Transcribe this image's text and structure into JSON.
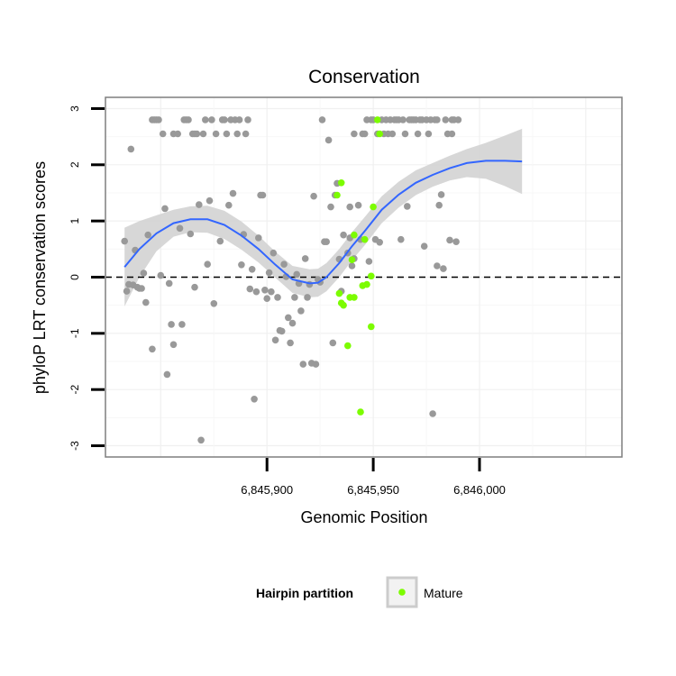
{
  "chart_data": {
    "type": "scatter",
    "title": "Conservation",
    "xlabel": "Genomic Position",
    "ylabel": "phyloP LRT conservation scores",
    "xlim": [
      6845824,
      6846067
    ],
    "ylim": [
      -3.2,
      3.2
    ],
    "x_ticks": [
      6845900,
      6845950,
      6846000
    ],
    "x_tick_labels": [
      "6,845,900",
      "6,845,950",
      "6,846,000"
    ],
    "y_ticks": [
      -3,
      -2,
      -1,
      0,
      1,
      2,
      3
    ],
    "y_tick_labels": [
      "-3",
      "-2",
      "-1",
      "0",
      "1",
      "2",
      "3"
    ],
    "grid": true,
    "reference_line": {
      "y": 0,
      "style": "dashed"
    },
    "legend": {
      "title": "Hairpin partition",
      "position": "bottom",
      "entries": [
        {
          "label": "Mature",
          "color": "#7cfc00"
        }
      ]
    },
    "colors": {
      "other": "#999999",
      "mature": "#7cfc00",
      "smooth_line": "#3366ff",
      "confidence_band": "#d3d3d3",
      "panel_border": "#7f7f7f"
    },
    "series": [
      {
        "points": [
          [
            6845833,
            0.64
          ],
          [
            6845834,
            -0.25
          ],
          [
            6845835,
            -0.13
          ],
          [
            6845836,
            2.28
          ],
          [
            6845837,
            -0.14
          ],
          [
            6845838,
            0.48
          ],
          [
            6845839,
            -0.18
          ],
          [
            6845840,
            -0.2
          ],
          [
            6845841,
            -0.2
          ],
          [
            6845842,
            0.07
          ],
          [
            6845843,
            -0.45
          ],
          [
            6845844,
            0.75
          ],
          [
            6845846,
            -1.28
          ],
          [
            6845846,
            2.8
          ],
          [
            6845847,
            2.8
          ],
          [
            6845848,
            2.8
          ],
          [
            6845849,
            2.8
          ],
          [
            6845850,
            0.03
          ],
          [
            6845851,
            2.55
          ],
          [
            6845852,
            1.22
          ],
          [
            6845853,
            -1.73
          ],
          [
            6845854,
            -0.11
          ],
          [
            6845855,
            -0.84
          ],
          [
            6845856,
            2.55
          ],
          [
            6845856,
            -1.2
          ],
          [
            6845858,
            2.55
          ],
          [
            6845859,
            0.87
          ],
          [
            6845860,
            -0.84
          ],
          [
            6845861,
            2.8
          ],
          [
            6845862,
            2.8
          ],
          [
            6845863,
            2.8
          ],
          [
            6845864,
            0.77
          ],
          [
            6845865,
            2.55
          ],
          [
            6845866,
            2.55
          ],
          [
            6845866,
            -0.18
          ],
          [
            6845867,
            2.55
          ],
          [
            6845868,
            1.29
          ],
          [
            6845869,
            -2.9
          ],
          [
            6845870,
            2.55
          ],
          [
            6845871,
            2.8
          ],
          [
            6845872,
            0.23
          ],
          [
            6845873,
            1.36
          ],
          [
            6845874,
            2.8
          ],
          [
            6845875,
            -0.47
          ],
          [
            6845876,
            2.55
          ],
          [
            6845878,
            0.64
          ],
          [
            6845879,
            2.8
          ],
          [
            6845880,
            2.8
          ],
          [
            6845881,
            2.55
          ],
          [
            6845882,
            1.28
          ],
          [
            6845883,
            2.8
          ],
          [
            6845884,
            1.49
          ],
          [
            6845885,
            2.8
          ],
          [
            6845886,
            2.55
          ],
          [
            6845887,
            2.8
          ],
          [
            6845888,
            0.22
          ],
          [
            6845889,
            0.76
          ],
          [
            6845890,
            2.55
          ],
          [
            6845891,
            2.8
          ],
          [
            6845892,
            -0.21
          ],
          [
            6845893,
            0.14
          ],
          [
            6845894,
            -2.17
          ],
          [
            6845895,
            -0.26
          ],
          [
            6845896,
            0.7
          ],
          [
            6845897,
            1.46
          ],
          [
            6845898,
            1.46
          ],
          [
            6845899,
            -0.23
          ],
          [
            6845900,
            -0.38
          ],
          [
            6845901,
            0.08
          ],
          [
            6845902,
            -0.26
          ],
          [
            6845903,
            0.43
          ],
          [
            6845904,
            -1.12
          ],
          [
            6845905,
            -0.36
          ],
          [
            6845906,
            -0.95
          ],
          [
            6845907,
            -0.96
          ],
          [
            6845908,
            0.23
          ],
          [
            6845909,
            0.01
          ],
          [
            6845910,
            -0.72
          ],
          [
            6845911,
            -1.17
          ],
          [
            6845912,
            -0.82
          ],
          [
            6845913,
            -0.36
          ],
          [
            6845914,
            0.05
          ],
          [
            6845915,
            -0.11
          ],
          [
            6845916,
            -0.6
          ],
          [
            6845917,
            -1.55
          ],
          [
            6845918,
            0.33
          ],
          [
            6845919,
            -0.36
          ],
          [
            6845920,
            -0.13
          ],
          [
            6845921,
            -1.53
          ],
          [
            6845922,
            1.44
          ],
          [
            6845923,
            -1.55
          ],
          [
            6845924,
            -0.04
          ],
          [
            6845925,
            -0.09
          ],
          [
            6845926,
            2.8
          ],
          [
            6845927,
            0.63
          ],
          [
            6845928,
            0.63
          ],
          [
            6845929,
            2.44
          ],
          [
            6845930,
            1.25
          ],
          [
            6845931,
            -1.17
          ],
          [
            6845932,
            1.46
          ],
          [
            6845933,
            1.67
          ],
          [
            6845934,
            0.32
          ],
          [
            6845935,
            -0.25
          ],
          [
            6845936,
            0.75
          ],
          [
            6845938,
            0.43
          ],
          [
            6845939,
            0.7
          ],
          [
            6845939,
            1.25
          ],
          [
            6845940,
            0.2
          ],
          [
            6845941,
            2.55
          ],
          [
            6845941,
            0.33
          ],
          [
            6845943,
            1.28
          ],
          [
            6845944,
            0.67
          ],
          [
            6845945,
            2.55
          ],
          [
            6845946,
            2.55
          ],
          [
            6845947,
            2.8
          ],
          [
            6845948,
            0.28
          ],
          [
            6845949,
            2.8
          ],
          [
            6845950,
            2.8
          ],
          [
            6845951,
            0.67
          ],
          [
            6845952,
            2.55
          ],
          [
            6845953,
            0.62
          ],
          [
            6845954,
            2.8
          ],
          [
            6845955,
            2.55
          ],
          [
            6845956,
            2.8
          ],
          [
            6845957,
            2.55
          ],
          [
            6845958,
            2.8
          ],
          [
            6845959,
            2.55
          ],
          [
            6845960,
            2.8
          ],
          [
            6845961,
            2.8
          ],
          [
            6845962,
            2.8
          ],
          [
            6845963,
            0.67
          ],
          [
            6845964,
            2.8
          ],
          [
            6845965,
            2.55
          ],
          [
            6845966,
            1.26
          ],
          [
            6845967,
            2.8
          ],
          [
            6845968,
            2.8
          ],
          [
            6845969,
            2.8
          ],
          [
            6845970,
            2.8
          ],
          [
            6845971,
            2.55
          ],
          [
            6845972,
            2.8
          ],
          [
            6845973,
            2.8
          ],
          [
            6845974,
            0.55
          ],
          [
            6845975,
            2.8
          ],
          [
            6845976,
            2.55
          ],
          [
            6845977,
            2.8
          ],
          [
            6845978,
            -2.43
          ],
          [
            6845979,
            2.8
          ],
          [
            6845980,
            0.2
          ],
          [
            6845980,
            2.8
          ],
          [
            6845981,
            1.28
          ],
          [
            6845982,
            1.47
          ],
          [
            6845983,
            0.15
          ],
          [
            6845984,
            2.8
          ],
          [
            6845985,
            2.55
          ],
          [
            6845986,
            0.66
          ],
          [
            6845987,
            2.8
          ],
          [
            6845987,
            2.55
          ],
          [
            6845988,
            2.8
          ],
          [
            6845989,
            0.63
          ],
          [
            6845990,
            2.8
          ]
        ]
      },
      {
        "name": "Mature",
        "points": [
          [
            6845933,
            1.46
          ],
          [
            6845934,
            -0.29
          ],
          [
            6845935,
            1.68
          ],
          [
            6845935,
            -0.46
          ],
          [
            6845936,
            -0.5
          ],
          [
            6845938,
            -1.22
          ],
          [
            6845939,
            -0.36
          ],
          [
            6845940,
            0.31
          ],
          [
            6845941,
            0.75
          ],
          [
            6845941,
            -0.36
          ],
          [
            6845944,
            -2.4
          ],
          [
            6845945,
            -0.15
          ],
          [
            6845946,
            0.67
          ],
          [
            6845947,
            -0.13
          ],
          [
            6845949,
            0.02
          ],
          [
            6845949,
            -0.88
          ],
          [
            6845950,
            1.25
          ],
          [
            6845952,
            2.8
          ],
          [
            6845953,
            2.55
          ]
        ]
      }
    ],
    "smooth": {
      "x": [
        6845833,
        6845840,
        6845848,
        6845856,
        6845864,
        6845872,
        6845880,
        6845888,
        6845896,
        6845904,
        6845912,
        6845920,
        6845924,
        6845928,
        6845934,
        6845940,
        6845946,
        6845954,
        6845962,
        6845970,
        6845978,
        6845986,
        6845994,
        6846003,
        6846012,
        6846020
      ],
      "y": [
        0.18,
        0.5,
        0.78,
        0.96,
        1.03,
        1.03,
        0.93,
        0.74,
        0.5,
        0.22,
        -0.04,
        -0.11,
        -0.1,
        0.0,
        0.25,
        0.55,
        0.82,
        1.2,
        1.47,
        1.68,
        1.82,
        1.94,
        2.03,
        2.07,
        2.07,
        2.06
      ]
    },
    "band_halfwidth": [
      0.7,
      0.5,
      0.32,
      0.24,
      0.23,
      0.24,
      0.25,
      0.25,
      0.24,
      0.23,
      0.24,
      0.25,
      0.25,
      0.25,
      0.25,
      0.25,
      0.25,
      0.24,
      0.23,
      0.22,
      0.21,
      0.22,
      0.25,
      0.32,
      0.45,
      0.58
    ]
  }
}
